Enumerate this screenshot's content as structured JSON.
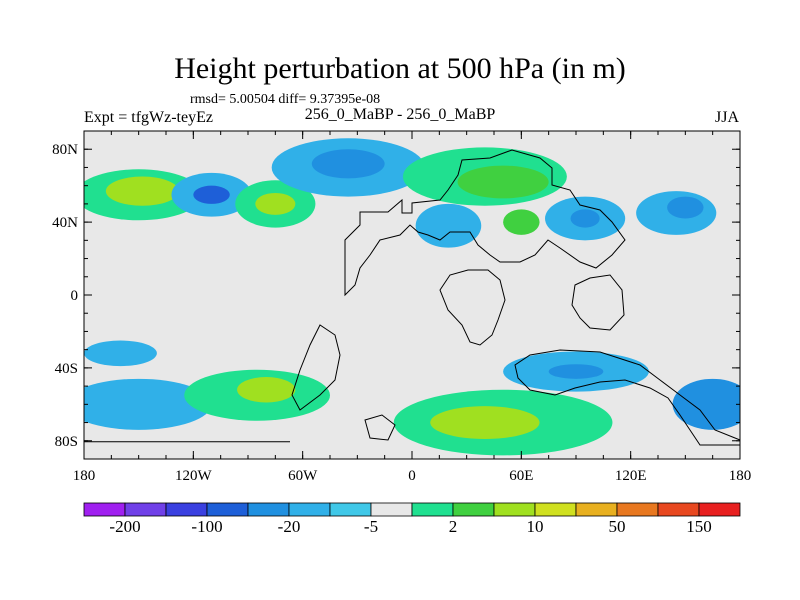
{
  "header": {
    "title": "Height perturbation at 500 hPa (in m)",
    "stats": "rmsd= 5.00504 diff= 9.37395e-08",
    "experiment": "Expt = tfgWz-teyEz",
    "subtitle": "256_0_MaBP - 256_0_MaBP",
    "season": "JJA"
  },
  "chart_data": {
    "type": "heatmap",
    "title": "Height perturbation at 500 hPa (in m)",
    "xlabel": "",
    "ylabel": "",
    "xlim": [
      -180,
      180
    ],
    "ylim": [
      -90,
      90
    ],
    "x_ticks": [
      {
        "value": -180,
        "label": "180"
      },
      {
        "value": -120,
        "label": "120W"
      },
      {
        "value": -60,
        "label": "60W"
      },
      {
        "value": 0,
        "label": "0"
      },
      {
        "value": 60,
        "label": "60E"
      },
      {
        "value": 120,
        "label": "120E"
      },
      {
        "value": 180,
        "label": "180"
      }
    ],
    "y_ticks": [
      {
        "value": 80,
        "label": "80N"
      },
      {
        "value": 40,
        "label": "40N"
      },
      {
        "value": 0,
        "label": "0"
      },
      {
        "value": -40,
        "label": "40S"
      },
      {
        "value": -80,
        "label": "80S"
      }
    ],
    "colorbar": {
      "colors": [
        "#a020f0",
        "#7040e8",
        "#3a40e0",
        "#1e5fd8",
        "#2090e0",
        "#30b0e8",
        "#40c8e8",
        "#e8e8e8",
        "#20e090",
        "#40d040",
        "#a0e020",
        "#d0e020",
        "#e8b020",
        "#e87820",
        "#e84820",
        "#e82020"
      ],
      "labels": [
        {
          "index": 1,
          "label": "-200"
        },
        {
          "index": 3,
          "label": "-100"
        },
        {
          "index": 5,
          "label": "-20"
        },
        {
          "index": 7,
          "label": "-5"
        },
        {
          "index": 9,
          "label": "2"
        },
        {
          "index": 11,
          "label": "10"
        },
        {
          "index": 13,
          "label": "50"
        },
        {
          "index": 15,
          "label": "150"
        }
      ]
    },
    "features": [
      {
        "name": "blob-np-1",
        "lon": -150,
        "lat": 55,
        "rx": 35,
        "ry": 14,
        "color": "#20e090"
      },
      {
        "name": "blob-np-2",
        "lon": -148,
        "lat": 57,
        "rx": 20,
        "ry": 8,
        "color": "#a0e020"
      },
      {
        "name": "blob-np-3",
        "lon": -110,
        "lat": 55,
        "rx": 22,
        "ry": 12,
        "color": "#30b0e8"
      },
      {
        "name": "blob-np-4",
        "lon": -110,
        "lat": 55,
        "rx": 10,
        "ry": 5,
        "color": "#1e5fd8"
      },
      {
        "name": "blob-np-5",
        "lon": -75,
        "lat": 50,
        "rx": 22,
        "ry": 13,
        "color": "#20e090"
      },
      {
        "name": "blob-np-6",
        "lon": -75,
        "lat": 50,
        "rx": 11,
        "ry": 6,
        "color": "#a0e020"
      },
      {
        "name": "blob-np-7",
        "lon": -35,
        "lat": 70,
        "rx": 42,
        "ry": 16,
        "color": "#30b0e8"
      },
      {
        "name": "blob-np-8",
        "lon": -35,
        "lat": 72,
        "rx": 20,
        "ry": 8,
        "color": "#2090e0"
      },
      {
        "name": "blob-np-9",
        "lon": 40,
        "lat": 65,
        "rx": 45,
        "ry": 16,
        "color": "#20e090"
      },
      {
        "name": "blob-np-10",
        "lon": 50,
        "lat": 62,
        "rx": 25,
        "ry": 9,
        "color": "#40d040"
      },
      {
        "name": "blob-np-11",
        "lon": 20,
        "lat": 38,
        "rx": 18,
        "ry": 12,
        "color": "#30b0e8"
      },
      {
        "name": "blob-np-12",
        "lon": 60,
        "lat": 40,
        "rx": 10,
        "ry": 7,
        "color": "#40d040"
      },
      {
        "name": "blob-np-13",
        "lon": 95,
        "lat": 42,
        "rx": 22,
        "ry": 12,
        "color": "#30b0e8"
      },
      {
        "name": "blob-np-14",
        "lon": 95,
        "lat": 42,
        "rx": 8,
        "ry": 5,
        "color": "#2090e0"
      },
      {
        "name": "blob-np-15",
        "lon": 145,
        "lat": 45,
        "rx": 22,
        "ry": 12,
        "color": "#30b0e8"
      },
      {
        "name": "blob-np-16",
        "lon": 150,
        "lat": 48,
        "rx": 10,
        "ry": 6,
        "color": "#2090e0"
      },
      {
        "name": "blob-sp-1",
        "lon": -160,
        "lat": -32,
        "rx": 20,
        "ry": 7,
        "color": "#30b0e8"
      },
      {
        "name": "blob-sp-2",
        "lon": -150,
        "lat": -60,
        "rx": 40,
        "ry": 14,
        "color": "#30b0e8"
      },
      {
        "name": "blob-sp-3",
        "lon": -85,
        "lat": -55,
        "rx": 40,
        "ry": 14,
        "color": "#20e090"
      },
      {
        "name": "blob-sp-4",
        "lon": -80,
        "lat": -52,
        "rx": 16,
        "ry": 7,
        "color": "#a0e020"
      },
      {
        "name": "blob-sp-5",
        "lon": 50,
        "lat": -70,
        "rx": 60,
        "ry": 18,
        "color": "#20e090"
      },
      {
        "name": "blob-sp-6",
        "lon": 40,
        "lat": -70,
        "rx": 30,
        "ry": 9,
        "color": "#a0e020"
      },
      {
        "name": "blob-sp-7",
        "lon": 90,
        "lat": -42,
        "rx": 40,
        "ry": 11,
        "color": "#30b0e8"
      },
      {
        "name": "blob-sp-8",
        "lon": 90,
        "lat": -42,
        "rx": 15,
        "ry": 4,
        "color": "#2090e0"
      },
      {
        "name": "blob-sp-9",
        "lon": 165,
        "lat": -60,
        "rx": 22,
        "ry": 14,
        "color": "#2090e0"
      }
    ]
  }
}
